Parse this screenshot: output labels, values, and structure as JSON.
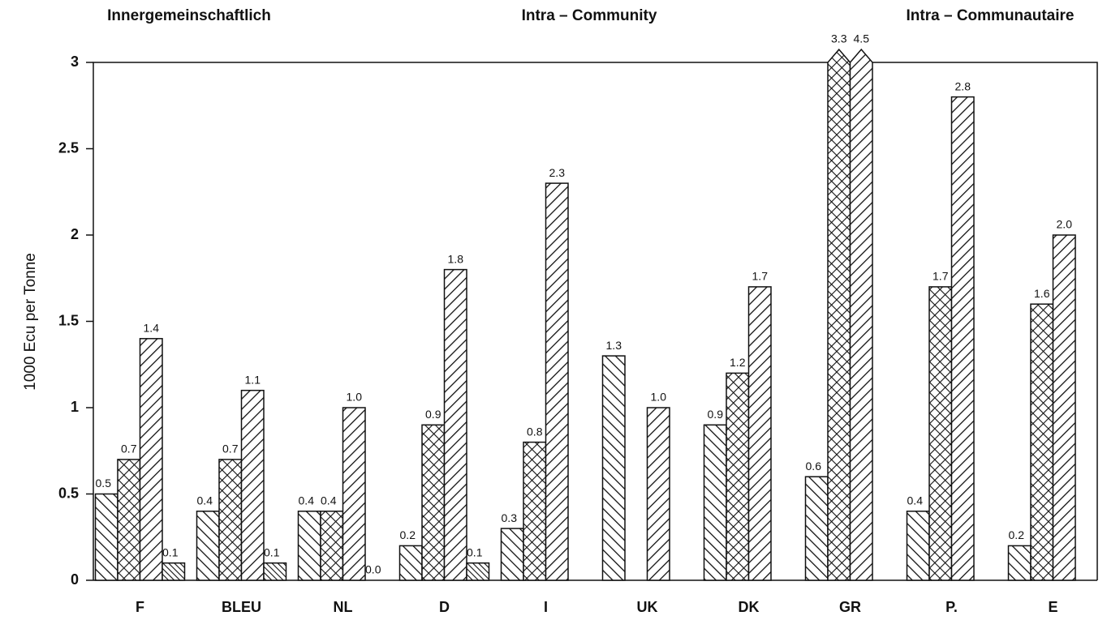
{
  "chart_data": {
    "type": "bar",
    "titles": [
      "Innergemeinschaftlich",
      "Intra – Community",
      "Intra – Communautaire"
    ],
    "y_label": "1000 Ecu per Tonne",
    "categories": [
      "F",
      "BLEU",
      "NL",
      "D",
      "I",
      "UK",
      "DK",
      "GR",
      "P.",
      "E"
    ],
    "series": [
      {
        "color": "#111111",
        "pattern": "backslash",
        "values": [
          0.5,
          0.4,
          0.4,
          0.2,
          0.3,
          1.3,
          0.9,
          0.6,
          0.4,
          0.2
        ],
        "value_labels": [
          "0.5",
          "0.4",
          "0.4",
          "0.2",
          "0.3",
          "1.3",
          "0.9",
          "0.6",
          "0.4",
          "0.2"
        ]
      },
      {
        "color": "#111111",
        "pattern": "crosshatch",
        "values": [
          0.7,
          0.7,
          0.4,
          0.9,
          0.8,
          null,
          1.2,
          3.3,
          1.7,
          1.6
        ],
        "value_labels": [
          "0.7",
          "0.7",
          "0.4",
          "0.9",
          "0.8",
          null,
          "1.2",
          "3.3",
          "1.7",
          "1.6"
        ]
      },
      {
        "color": "#111111",
        "pattern": "slash",
        "values": [
          1.4,
          1.1,
          1.0,
          1.8,
          2.3,
          1.0,
          1.7,
          4.5,
          2.8,
          2.0
        ],
        "value_labels": [
          "1.4",
          "1.1",
          "1.0",
          "1.8",
          "2.3",
          "1.0",
          "1.7",
          "4.5",
          "2.8",
          "2.0"
        ]
      },
      {
        "color": "#111111",
        "pattern": "backslash-dense",
        "values": [
          0.1,
          0.1,
          0.0,
          0.1,
          null,
          null,
          null,
          null,
          null,
          null
        ],
        "value_labels": [
          "0.1",
          "0.1",
          "0.0",
          "0.1",
          null,
          null,
          null,
          null,
          null,
          null
        ]
      }
    ],
    "ylim": [
      0,
      3
    ],
    "yticks": [
      0,
      0.5,
      1,
      1.5,
      2,
      2.5,
      3
    ],
    "grid": false
  }
}
